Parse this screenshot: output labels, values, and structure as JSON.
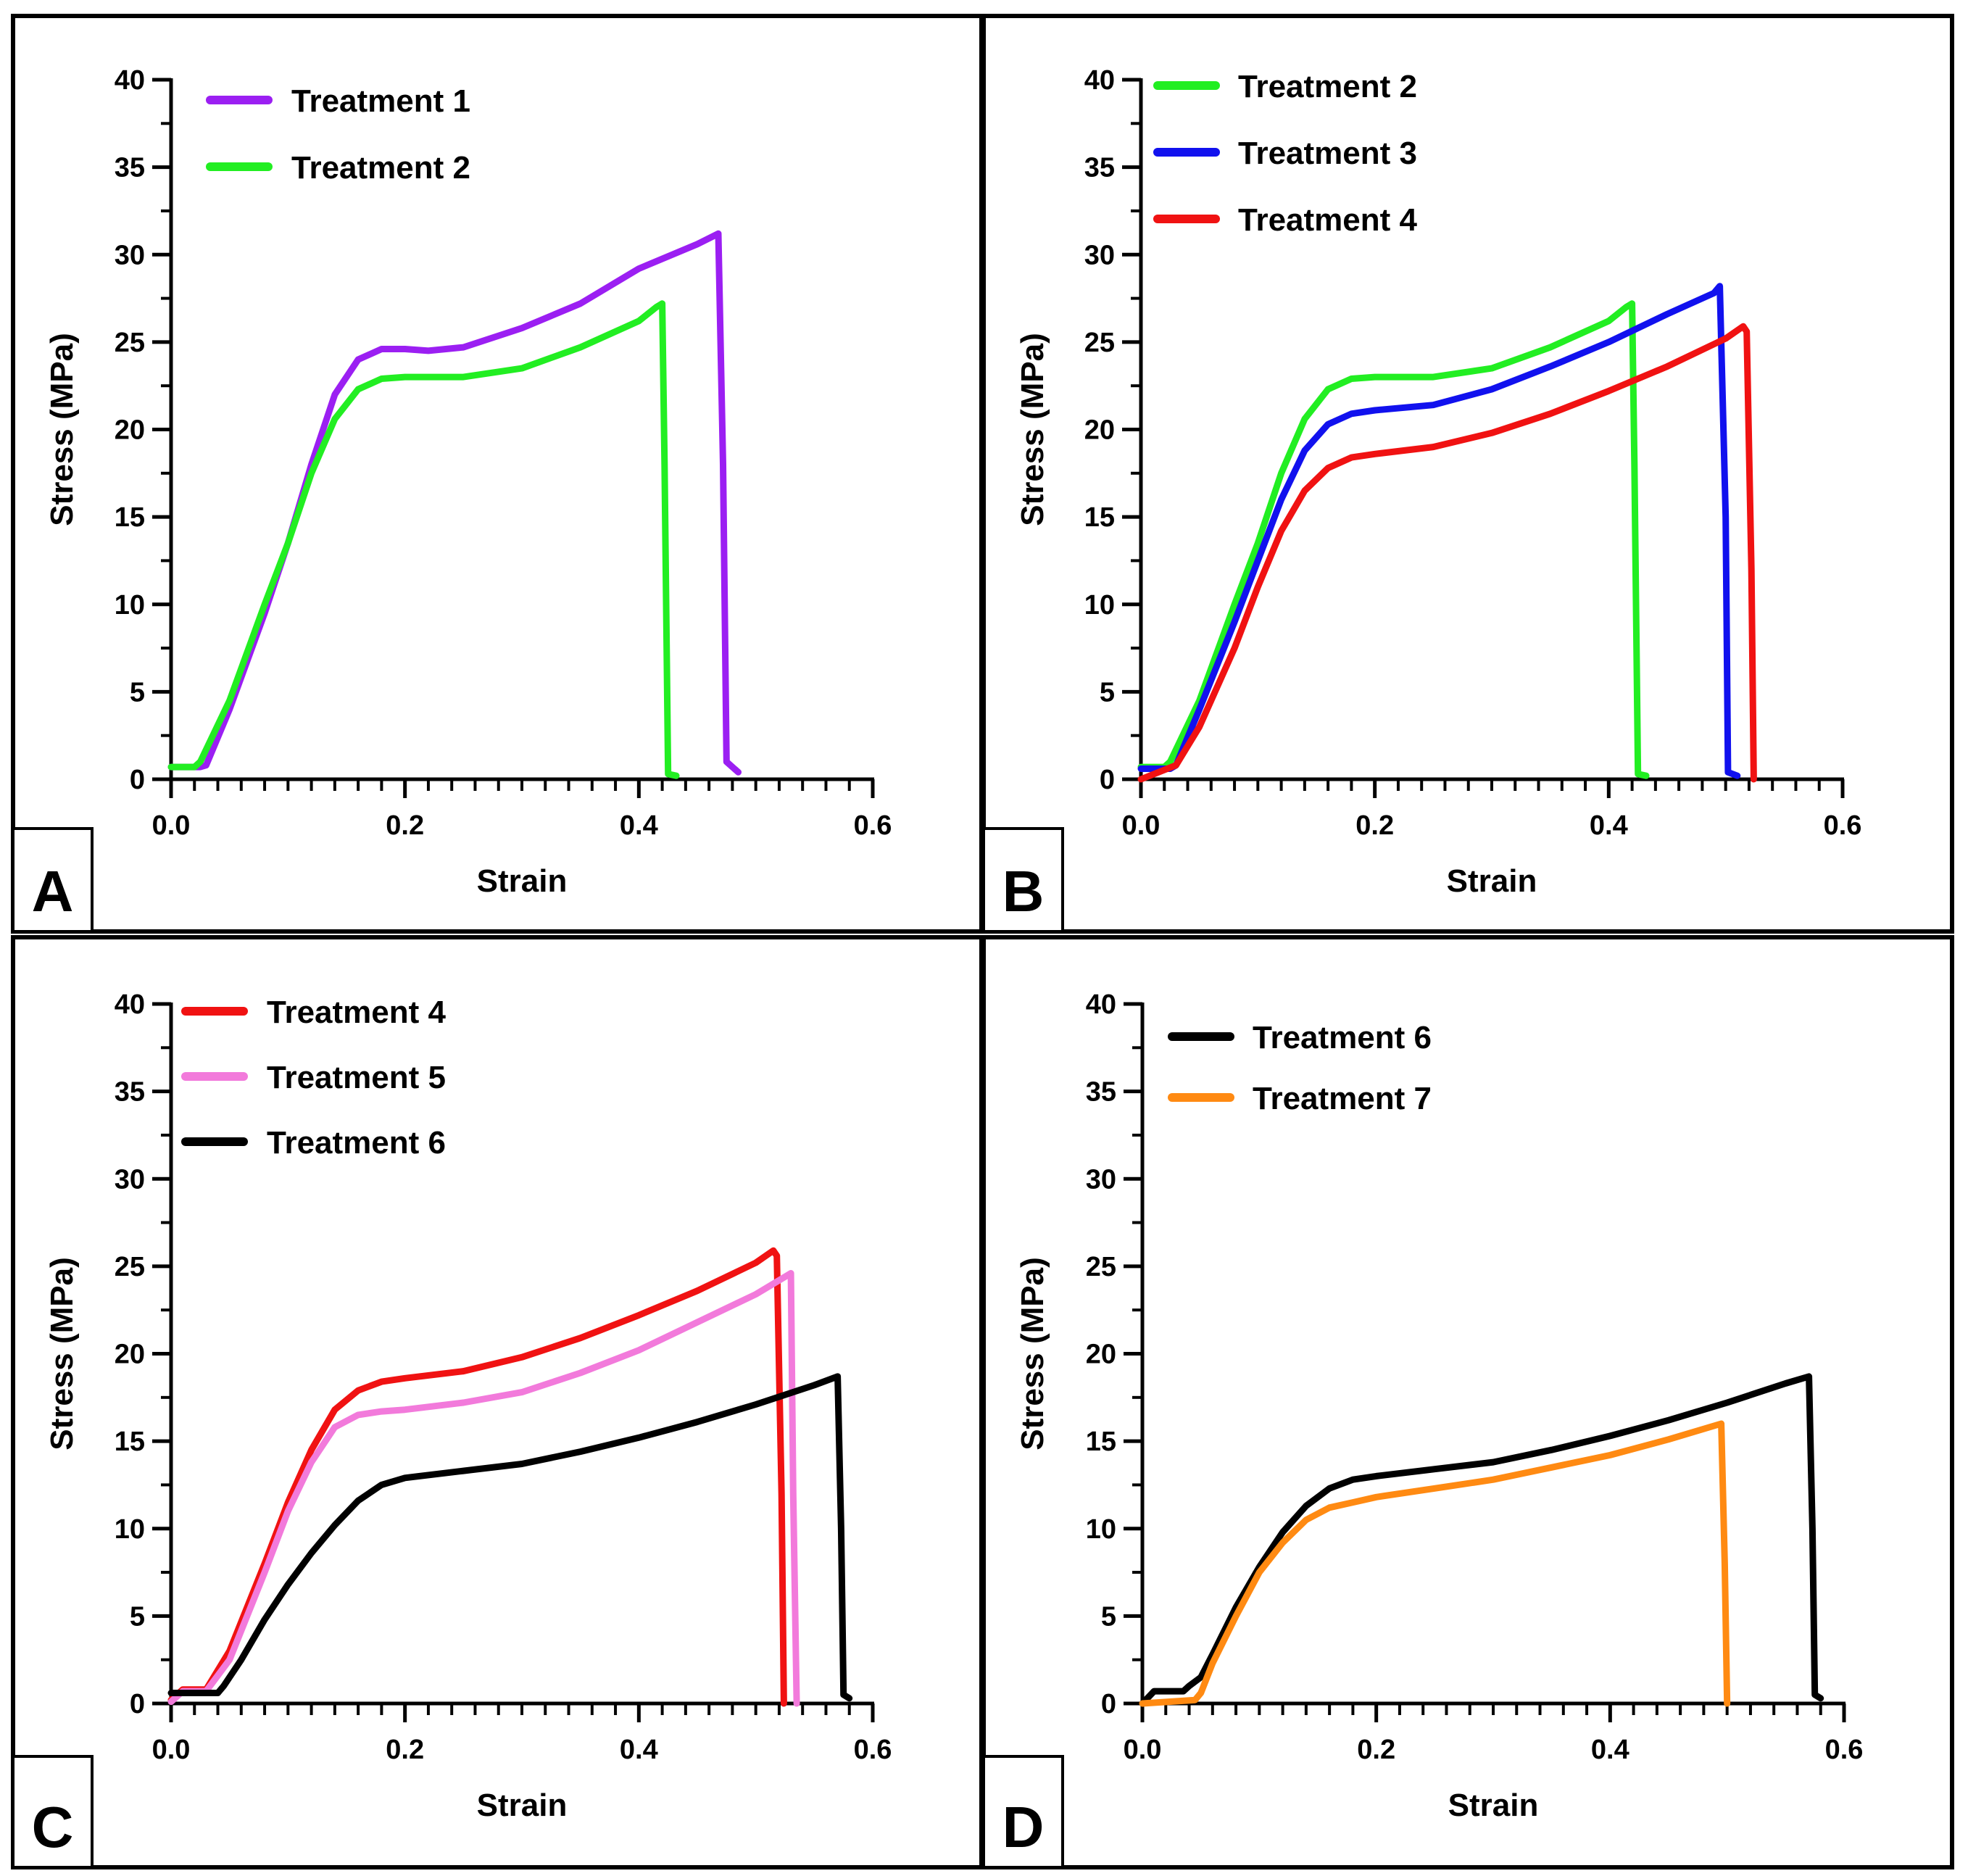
{
  "figure": {
    "panel_letters": [
      "A",
      "B",
      "C",
      "D"
    ]
  },
  "colors": {
    "Treatment 1": "#9B1FF2",
    "Treatment 2": "#22EE22",
    "Treatment 3": "#1111EE",
    "Treatment 4": "#F01212",
    "Treatment 5": "#F27ADB",
    "Treatment 6": "#000000",
    "Treatment 7": "#FF8A12"
  },
  "chart_data": [
    {
      "panel": "A",
      "type": "line",
      "xlabel": "Strain",
      "ylabel": "Stress (MPa)",
      "xlim": [
        0,
        0.6
      ],
      "ylim": [
        0,
        40
      ],
      "xticks": [
        "0.0",
        "0.2",
        "0.4",
        "0.6"
      ],
      "yticks": [
        "0",
        "5",
        "10",
        "15",
        "20",
        "25",
        "30",
        "35",
        "40"
      ],
      "series": [
        {
          "name": "Treatment 1",
          "x": [
            0,
            0.025,
            0.03,
            0.05,
            0.08,
            0.1,
            0.12,
            0.14,
            0.16,
            0.18,
            0.2,
            0.22,
            0.25,
            0.3,
            0.35,
            0.4,
            0.45,
            0.468,
            0.472,
            0.475,
            0.485
          ],
          "y": [
            0.7,
            0.7,
            0.8,
            4,
            9.5,
            13.5,
            18,
            22,
            24,
            24.6,
            24.6,
            24.5,
            24.7,
            25.8,
            27.2,
            29.2,
            30.6,
            31.2,
            18,
            1,
            0.4
          ]
        },
        {
          "name": "Treatment 2",
          "x": [
            0,
            0.02,
            0.025,
            0.05,
            0.08,
            0.1,
            0.12,
            0.14,
            0.16,
            0.18,
            0.2,
            0.25,
            0.3,
            0.35,
            0.4,
            0.415,
            0.42,
            0.422,
            0.425,
            0.432
          ],
          "y": [
            0.7,
            0.7,
            1,
            4.5,
            10,
            13.5,
            17.5,
            20.6,
            22.3,
            22.9,
            23,
            23,
            23.5,
            24.7,
            26.2,
            27,
            27.2,
            18,
            0.3,
            0.2
          ]
        }
      ]
    },
    {
      "panel": "B",
      "type": "line",
      "xlabel": "Strain",
      "ylabel": "Stress (MPa)",
      "xlim": [
        0,
        0.6
      ],
      "ylim": [
        0,
        40
      ],
      "xticks": [
        "0.0",
        "0.2",
        "0.4",
        "0.6"
      ],
      "yticks": [
        "0",
        "5",
        "10",
        "15",
        "20",
        "25",
        "30",
        "35",
        "40"
      ],
      "series": [
        {
          "name": "Treatment 2",
          "x": [
            0,
            0.02,
            0.025,
            0.05,
            0.08,
            0.1,
            0.12,
            0.14,
            0.16,
            0.18,
            0.2,
            0.25,
            0.3,
            0.35,
            0.4,
            0.415,
            0.42,
            0.422,
            0.425,
            0.432
          ],
          "y": [
            0.7,
            0.7,
            1,
            4.5,
            10,
            13.5,
            17.5,
            20.6,
            22.3,
            22.9,
            23,
            23,
            23.5,
            24.7,
            26.2,
            27,
            27.2,
            18,
            0.3,
            0.2
          ]
        },
        {
          "name": "Treatment 3",
          "x": [
            0,
            0.025,
            0.03,
            0.05,
            0.08,
            0.1,
            0.12,
            0.14,
            0.16,
            0.18,
            0.2,
            0.25,
            0.3,
            0.35,
            0.4,
            0.45,
            0.49,
            0.495,
            0.5,
            0.502,
            0.51
          ],
          "y": [
            0.6,
            0.6,
            0.8,
            4,
            9,
            12.5,
            16,
            18.8,
            20.3,
            20.9,
            21.1,
            21.4,
            22.3,
            23.6,
            25,
            26.6,
            27.8,
            28.2,
            15,
            0.4,
            0.2
          ]
        },
        {
          "name": "Treatment 4",
          "x": [
            0,
            0.03,
            0.05,
            0.08,
            0.1,
            0.12,
            0.14,
            0.16,
            0.18,
            0.2,
            0.25,
            0.3,
            0.35,
            0.4,
            0.45,
            0.5,
            0.515,
            0.518,
            0.522,
            0.524
          ],
          "y": [
            0,
            0.8,
            3,
            7.5,
            11,
            14.2,
            16.5,
            17.8,
            18.4,
            18.6,
            19,
            19.8,
            20.9,
            22.2,
            23.6,
            25.2,
            25.9,
            25.6,
            12,
            0
          ]
        }
      ]
    },
    {
      "panel": "C",
      "type": "line",
      "xlabel": "Strain",
      "ylabel": "Stress (MPa)",
      "xlim": [
        0,
        0.6
      ],
      "ylim": [
        0,
        40
      ],
      "xticks": [
        "0.0",
        "0.2",
        "0.4",
        "0.6"
      ],
      "yticks": [
        "0",
        "5",
        "10",
        "15",
        "20",
        "25",
        "30",
        "35",
        "40"
      ],
      "series": [
        {
          "name": "Treatment 4",
          "x": [
            0,
            0.01,
            0.03,
            0.05,
            0.08,
            0.1,
            0.12,
            0.14,
            0.16,
            0.18,
            0.2,
            0.25,
            0.3,
            0.35,
            0.4,
            0.45,
            0.5,
            0.515,
            0.518,
            0.522,
            0.524
          ],
          "y": [
            0.2,
            0.8,
            0.8,
            3,
            8,
            11.5,
            14.5,
            16.8,
            17.9,
            18.4,
            18.6,
            19,
            19.8,
            20.9,
            22.2,
            23.6,
            25.2,
            25.9,
            25.6,
            12,
            0
          ]
        },
        {
          "name": "Treatment 5",
          "x": [
            0,
            0.01,
            0.03,
            0.05,
            0.08,
            0.1,
            0.12,
            0.14,
            0.16,
            0.18,
            0.2,
            0.25,
            0.3,
            0.35,
            0.4,
            0.45,
            0.5,
            0.53,
            0.532,
            0.535
          ],
          "y": [
            0.1,
            0.7,
            0.7,
            2.5,
            7.5,
            11,
            13.8,
            15.8,
            16.5,
            16.7,
            16.8,
            17.2,
            17.8,
            18.9,
            20.2,
            21.8,
            23.4,
            24.6,
            12,
            0
          ]
        },
        {
          "name": "Treatment 6",
          "x": [
            0,
            0.04,
            0.045,
            0.06,
            0.08,
            0.1,
            0.12,
            0.14,
            0.16,
            0.18,
            0.2,
            0.25,
            0.3,
            0.35,
            0.4,
            0.45,
            0.5,
            0.55,
            0.57,
            0.573,
            0.575,
            0.58
          ],
          "y": [
            0.6,
            0.6,
            1,
            2.5,
            4.8,
            6.8,
            8.6,
            10.2,
            11.6,
            12.5,
            12.9,
            13.3,
            13.7,
            14.4,
            15.2,
            16.1,
            17.1,
            18.2,
            18.7,
            10,
            0.5,
            0.3
          ]
        }
      ]
    },
    {
      "panel": "D",
      "type": "line",
      "xlabel": "Strain",
      "ylabel": "Stress (MPa)",
      "xlim": [
        0,
        0.6
      ],
      "ylim": [
        0,
        40
      ],
      "xticks": [
        "0.0",
        "0.2",
        "0.4",
        "0.6"
      ],
      "yticks": [
        "0",
        "5",
        "10",
        "15",
        "20",
        "25",
        "30",
        "35",
        "40"
      ],
      "series": [
        {
          "name": "Treatment 6",
          "x": [
            0,
            0.01,
            0.035,
            0.04,
            0.05,
            0.06,
            0.08,
            0.1,
            0.12,
            0.14,
            0.16,
            0.18,
            0.2,
            0.25,
            0.3,
            0.35,
            0.4,
            0.45,
            0.5,
            0.55,
            0.57,
            0.573,
            0.575,
            0.58
          ],
          "y": [
            0,
            0.7,
            0.7,
            1,
            1.5,
            2.8,
            5.5,
            7.8,
            9.8,
            11.3,
            12.3,
            12.8,
            13,
            13.4,
            13.8,
            14.5,
            15.3,
            16.2,
            17.2,
            18.3,
            18.7,
            10,
            0.5,
            0.3
          ]
        },
        {
          "name": "Treatment 7",
          "x": [
            0,
            0.045,
            0.05,
            0.06,
            0.08,
            0.1,
            0.12,
            0.14,
            0.16,
            0.18,
            0.2,
            0.25,
            0.3,
            0.35,
            0.4,
            0.45,
            0.495,
            0.498,
            0.5
          ],
          "y": [
            0,
            0.2,
            0.6,
            2.3,
            5,
            7.5,
            9.2,
            10.5,
            11.2,
            11.5,
            11.8,
            12.3,
            12.8,
            13.5,
            14.2,
            15.1,
            16,
            8,
            0
          ]
        }
      ]
    }
  ]
}
